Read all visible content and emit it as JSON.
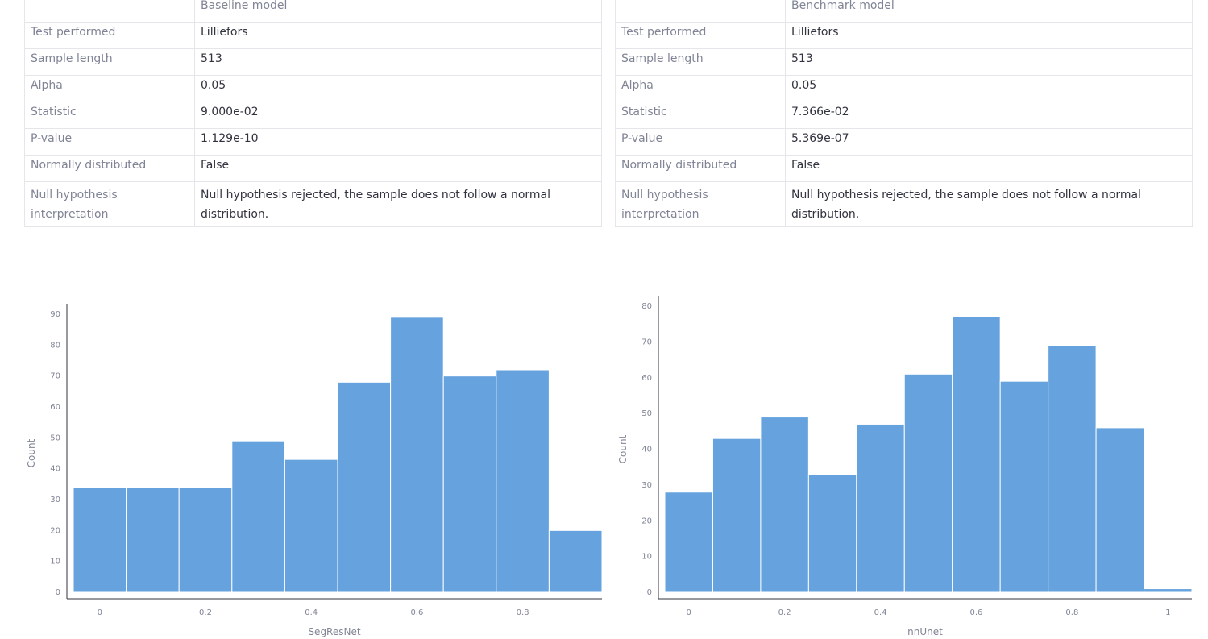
{
  "tables": [
    {
      "header": "Baseline model",
      "rows": [
        {
          "label": "Test performed",
          "value": "Lilliefors"
        },
        {
          "label": "Sample length",
          "value": "513"
        },
        {
          "label": "Alpha",
          "value": "0.05"
        },
        {
          "label": "Statistic",
          "value": "9.000e-02"
        },
        {
          "label": "P-value",
          "value": "1.129e-10"
        },
        {
          "label": "Normally distributed",
          "value": "False"
        },
        {
          "label": "Null hypothesis interpretation",
          "value": "Null hypothesis rejected, the sample does not follow a normal distribution."
        }
      ]
    },
    {
      "header": "Benchmark model",
      "rows": [
        {
          "label": "Test performed",
          "value": "Lilliefors"
        },
        {
          "label": "Sample length",
          "value": "513"
        },
        {
          "label": "Alpha",
          "value": "0.05"
        },
        {
          "label": "Statistic",
          "value": "7.366e-02"
        },
        {
          "label": "P-value",
          "value": "5.369e-07"
        },
        {
          "label": "Normally distributed",
          "value": "False"
        },
        {
          "label": "Null hypothesis interpretation",
          "value": "Null hypothesis rejected, the sample does not follow a normal distribution."
        }
      ]
    }
  ],
  "chart_data": [
    {
      "type": "bar",
      "title": "",
      "xlabel": "SegResNet",
      "ylabel": "Count",
      "bin_width": 0.1,
      "bins": [
        {
          "x0": -0.05,
          "x1": 0.05,
          "count": 34
        },
        {
          "x0": 0.05,
          "x1": 0.15,
          "count": 34
        },
        {
          "x0": 0.15,
          "x1": 0.25,
          "count": 34
        },
        {
          "x0": 0.25,
          "x1": 0.35,
          "count": 49
        },
        {
          "x0": 0.35,
          "x1": 0.45,
          "count": 43
        },
        {
          "x0": 0.45,
          "x1": 0.55,
          "count": 68
        },
        {
          "x0": 0.55,
          "x1": 0.65,
          "count": 89
        },
        {
          "x0": 0.65,
          "x1": 0.75,
          "count": 70
        },
        {
          "x0": 0.75,
          "x1": 0.85,
          "count": 72
        },
        {
          "x0": 0.85,
          "x1": 0.95,
          "count": 20
        }
      ],
      "xlim": [
        -0.05,
        0.95
      ],
      "ylim": [
        0,
        90
      ],
      "xticks": [
        "0",
        "0.2",
        "0.4",
        "0.6",
        "0.8"
      ],
      "yticks": [
        "0",
        "10",
        "20",
        "30",
        "40",
        "50",
        "60",
        "70",
        "80",
        "90"
      ],
      "color": "#66a3de"
    },
    {
      "type": "bar",
      "title": "",
      "xlabel": "nnUnet",
      "ylabel": "Count",
      "bin_width": 0.1,
      "bins": [
        {
          "x0": -0.05,
          "x1": 0.05,
          "count": 28
        },
        {
          "x0": 0.05,
          "x1": 0.15,
          "count": 43
        },
        {
          "x0": 0.15,
          "x1": 0.25,
          "count": 49
        },
        {
          "x0": 0.25,
          "x1": 0.35,
          "count": 33
        },
        {
          "x0": 0.35,
          "x1": 0.45,
          "count": 47
        },
        {
          "x0": 0.45,
          "x1": 0.55,
          "count": 61
        },
        {
          "x0": 0.55,
          "x1": 0.65,
          "count": 77
        },
        {
          "x0": 0.65,
          "x1": 0.75,
          "count": 59
        },
        {
          "x0": 0.75,
          "x1": 0.85,
          "count": 69
        },
        {
          "x0": 0.85,
          "x1": 0.95,
          "count": 46
        },
        {
          "x0": 0.95,
          "x1": 1.05,
          "count": 1
        }
      ],
      "xlim": [
        -0.05,
        1.05
      ],
      "ylim": [
        0,
        80
      ],
      "xticks": [
        "0",
        "0.2",
        "0.4",
        "0.6",
        "0.8",
        "1"
      ],
      "yticks": [
        "0",
        "10",
        "20",
        "30",
        "40",
        "50",
        "60",
        "70",
        "80"
      ],
      "color": "#66a3de"
    }
  ]
}
